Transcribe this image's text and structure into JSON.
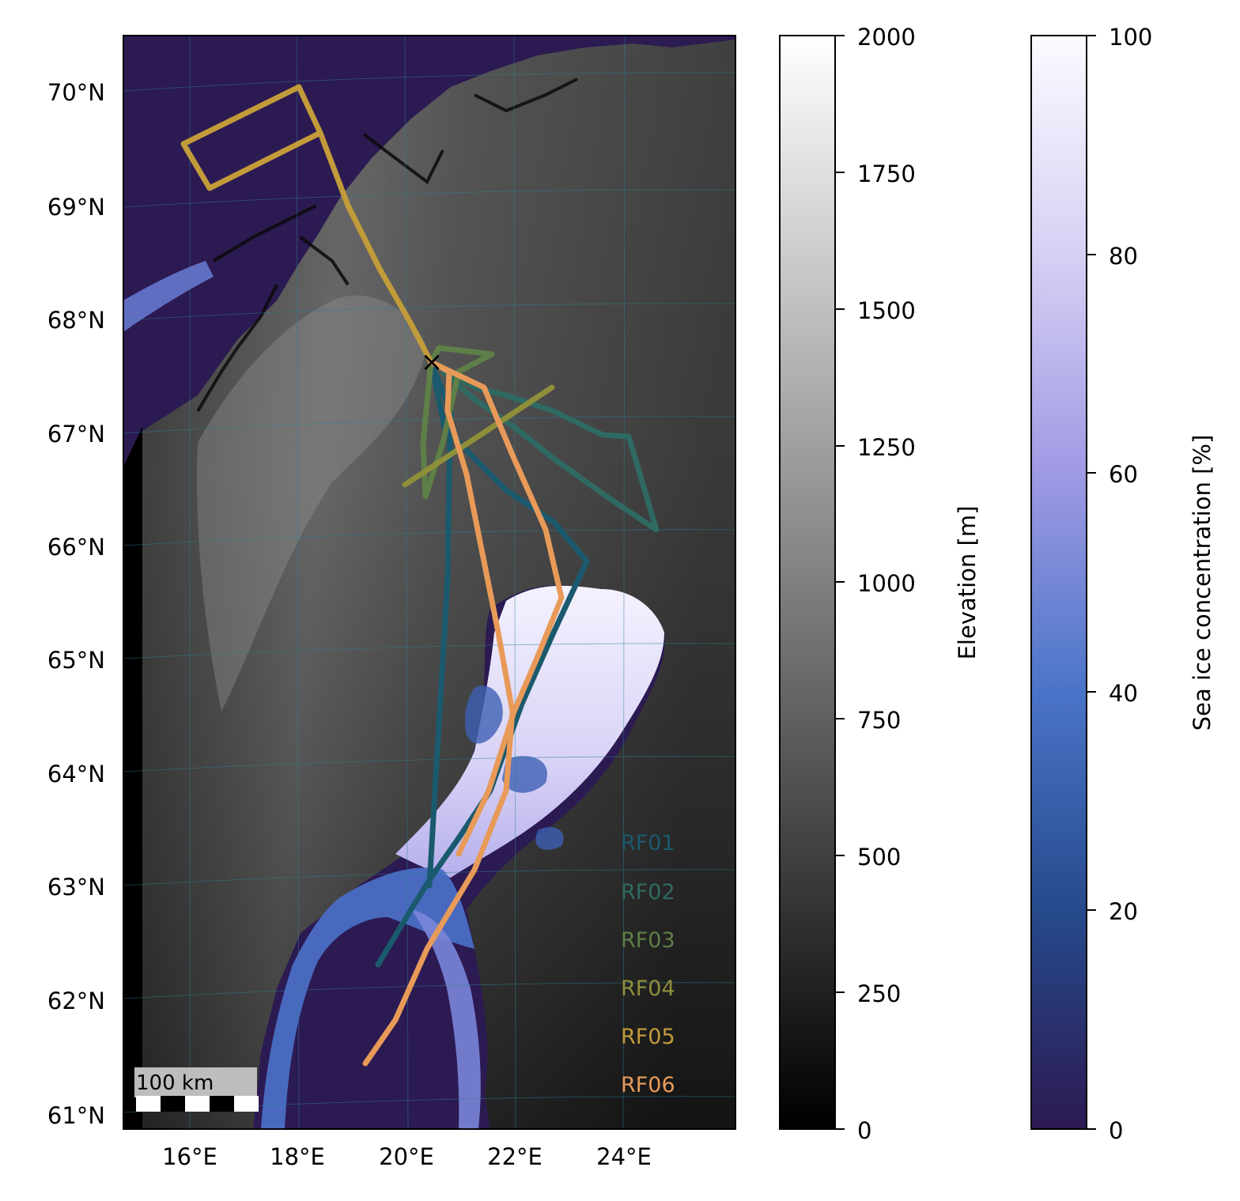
{
  "map": {
    "lat_ticks": [
      "70°N",
      "69°N",
      "68°N",
      "67°N",
      "66°N",
      "65°N",
      "64°N",
      "63°N",
      "62°N",
      "61°N"
    ],
    "lon_ticks": [
      "16°E",
      "18°E",
      "20°E",
      "22°E",
      "24°E"
    ],
    "scalebar_label": "100 km",
    "origin_marker": "×",
    "flights": [
      {
        "name": "RF01",
        "color": "#1b5a6e"
      },
      {
        "name": "RF02",
        "color": "#2f6a62"
      },
      {
        "name": "RF03",
        "color": "#5e7f47"
      },
      {
        "name": "RF04",
        "color": "#8f8f3a"
      },
      {
        "name": "RF05",
        "color": "#c29b3a"
      },
      {
        "name": "RF06",
        "color": "#e89a59"
      }
    ],
    "colors": {
      "sea": "#2c1a52",
      "graticule": "#2f7f96"
    }
  },
  "elevation_colorbar": {
    "label": "Elevation [m]",
    "ticks": [
      "0",
      "250",
      "500",
      "750",
      "1000",
      "1250",
      "1500",
      "1750",
      "2000"
    ],
    "range": [
      0,
      2000
    ],
    "colormap": "greys"
  },
  "ice_colorbar": {
    "label": "Sea ice concentration [%]",
    "ticks": [
      "0",
      "20",
      "40",
      "60",
      "80",
      "100"
    ],
    "range": [
      0,
      100
    ],
    "colormap": "purple-blue-white"
  }
}
